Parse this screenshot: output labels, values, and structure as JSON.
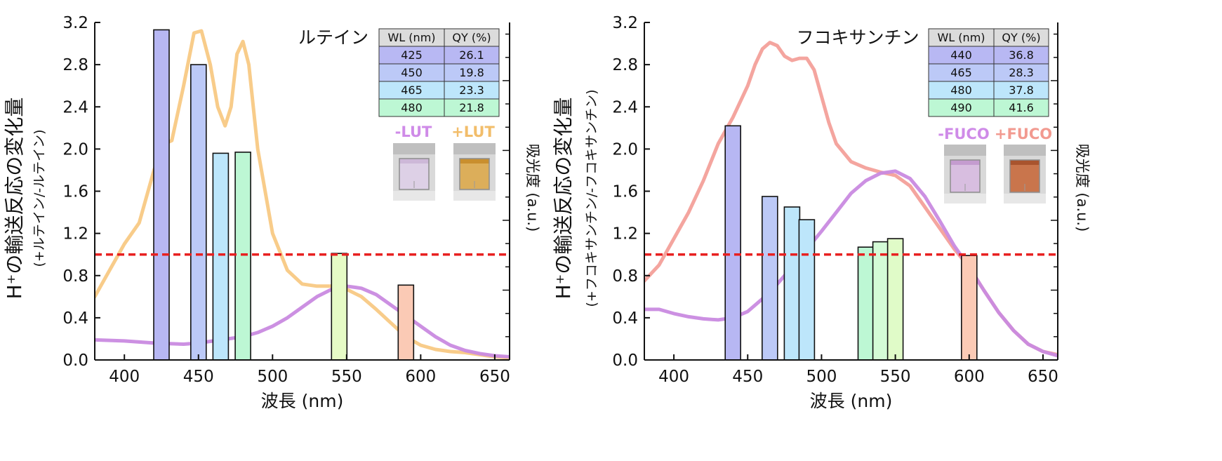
{
  "chart_data": [
    {
      "type": "bar",
      "title": "ルテイン",
      "xlabel": "波長 (nm)",
      "ylabel": "H⁺の輸送反応の変化量",
      "ylabel_sub": "(+ルテイン/-ルテイン)",
      "right_label": "吸光度 (a.u.)",
      "xlim": [
        380,
        660
      ],
      "ylim": [
        0,
        3.2
      ],
      "xticks": [
        400,
        450,
        500,
        550,
        600,
        650
      ],
      "yticks": [
        "0.0",
        "0.4",
        "0.8",
        "1.2",
        "1.6",
        "2.0",
        "2.4",
        "2.8",
        "3.2"
      ],
      "reference_line": 1.0,
      "bars": [
        {
          "x": 425,
          "value": 3.13,
          "color": "#b7b7f3"
        },
        {
          "x": 450,
          "value": 2.8,
          "color": "#bcc9f7"
        },
        {
          "x": 465,
          "value": 1.96,
          "color": "#bde6fb"
        },
        {
          "x": 480,
          "value": 1.97,
          "color": "#bdf7d4"
        },
        {
          "x": 545,
          "value": 1.01,
          "color": "#e6fbc6"
        },
        {
          "x": 590,
          "value": 0.71,
          "color": "#fbcab5"
        }
      ],
      "series": [
        {
          "name": "+LUT",
          "color": "#f8c984",
          "x": [
            380,
            390,
            400,
            410,
            420,
            427,
            432,
            440,
            447,
            452,
            458,
            463,
            468,
            472,
            476,
            480,
            484,
            490,
            500,
            510,
            520,
            530,
            540,
            550,
            560,
            570,
            580,
            590,
            600,
            610,
            620,
            630,
            640,
            650,
            660
          ],
          "y": [
            0.6,
            0.85,
            1.1,
            1.3,
            1.8,
            2.05,
            2.08,
            2.6,
            3.1,
            3.12,
            2.8,
            2.4,
            2.22,
            2.4,
            2.9,
            3.02,
            2.8,
            2.0,
            1.2,
            0.85,
            0.72,
            0.7,
            0.7,
            0.67,
            0.6,
            0.48,
            0.35,
            0.22,
            0.14,
            0.1,
            0.08,
            0.07,
            0.05,
            0.03,
            0.02
          ]
        },
        {
          "name": "-LUT",
          "color": "#c98ae0",
          "x": [
            380,
            400,
            420,
            440,
            450,
            460,
            470,
            480,
            490,
            500,
            510,
            520,
            530,
            540,
            550,
            560,
            570,
            580,
            590,
            600,
            610,
            620,
            630,
            640,
            650,
            660
          ],
          "y": [
            0.19,
            0.18,
            0.16,
            0.15,
            0.16,
            0.18,
            0.2,
            0.22,
            0.26,
            0.32,
            0.4,
            0.5,
            0.6,
            0.67,
            0.7,
            0.68,
            0.62,
            0.52,
            0.42,
            0.32,
            0.22,
            0.14,
            0.09,
            0.06,
            0.04,
            0.03
          ]
        }
      ],
      "table": {
        "headers": [
          "WL (nm)",
          "QY (%)"
        ],
        "rows": [
          [
            "425",
            "26.1"
          ],
          [
            "450",
            "19.8"
          ],
          [
            "465",
            "23.3"
          ],
          [
            "480",
            "21.8"
          ]
        ],
        "row_colors": [
          "#b8b8f3",
          "#bcc9f7",
          "#bde6fb",
          "#bdf7d4"
        ]
      },
      "photos": [
        {
          "label": "-LUT",
          "label_color": "#cf8be8",
          "liquid": "#ddd0e6",
          "liquid_dark": "#cdb8d8"
        },
        {
          "label": "+LUT",
          "label_color": "#f2bd6a",
          "liquid": "#dcae5a",
          "liquid_dark": "#c98f2e"
        }
      ]
    },
    {
      "type": "bar",
      "title": "フコキサンチン",
      "xlabel": "波長 (nm)",
      "ylabel": "H⁺の輸送反応の変化量",
      "ylabel_sub": "(+フコキサンチン/-フコキサンチン)",
      "right_label": "吸光度 (a.u.)",
      "xlim": [
        380,
        660
      ],
      "ylim": [
        0,
        3.2
      ],
      "xticks": [
        400,
        450,
        500,
        550,
        600,
        650
      ],
      "yticks": [
        "0.0",
        "0.4",
        "0.8",
        "1.2",
        "1.6",
        "2.0",
        "2.4",
        "2.8",
        "3.2"
      ],
      "reference_line": 1.0,
      "bars": [
        {
          "x": 440,
          "value": 2.22,
          "color": "#b7b7f3"
        },
        {
          "x": 465,
          "value": 1.55,
          "color": "#bcc9f7"
        },
        {
          "x": 480,
          "value": 1.45,
          "color": "#bde6fb"
        },
        {
          "x": 490,
          "value": 1.33,
          "color": "#bde6fb"
        },
        {
          "x": 530,
          "value": 1.07,
          "color": "#bdf7d4"
        },
        {
          "x": 540,
          "value": 1.12,
          "color": "#d4fbd6"
        },
        {
          "x": 550,
          "value": 1.15,
          "color": "#e0fbc8"
        },
        {
          "x": 600,
          "value": 0.99,
          "color": "#fbcab5"
        }
      ],
      "series": [
        {
          "name": "+FUCO",
          "color": "#f3a09a",
          "x": [
            380,
            390,
            400,
            410,
            420,
            430,
            440,
            450,
            455,
            460,
            465,
            470,
            475,
            480,
            485,
            490,
            495,
            500,
            505,
            510,
            520,
            530,
            540,
            550,
            560,
            570,
            580,
            590,
            600,
            610,
            620,
            630,
            640,
            650,
            660
          ],
          "y": [
            0.75,
            0.9,
            1.15,
            1.4,
            1.7,
            2.05,
            2.3,
            2.6,
            2.8,
            2.95,
            3.01,
            2.98,
            2.88,
            2.84,
            2.86,
            2.86,
            2.75,
            2.5,
            2.25,
            2.05,
            1.88,
            1.82,
            1.78,
            1.75,
            1.65,
            1.45,
            1.25,
            1.05,
            0.88,
            0.66,
            0.45,
            0.28,
            0.15,
            0.08,
            0.05
          ]
        },
        {
          "name": "-FUCO",
          "color": "#c98ae0",
          "x": [
            380,
            390,
            400,
            410,
            420,
            430,
            440,
            450,
            460,
            470,
            480,
            490,
            500,
            510,
            520,
            530,
            540,
            550,
            560,
            570,
            580,
            590,
            600,
            610,
            620,
            630,
            640,
            650,
            660
          ],
          "y": [
            0.48,
            0.48,
            0.44,
            0.41,
            0.39,
            0.38,
            0.4,
            0.46,
            0.58,
            0.72,
            0.88,
            1.05,
            1.22,
            1.4,
            1.58,
            1.7,
            1.77,
            1.79,
            1.72,
            1.55,
            1.32,
            1.08,
            0.88,
            0.66,
            0.45,
            0.28,
            0.15,
            0.08,
            0.04
          ]
        }
      ],
      "table": {
        "headers": [
          "WL (nm)",
          "QY (%)"
        ],
        "rows": [
          [
            "440",
            "36.8"
          ],
          [
            "465",
            "28.3"
          ],
          [
            "480",
            "37.8"
          ],
          [
            "490",
            "41.6"
          ]
        ],
        "row_colors": [
          "#b8b8f3",
          "#bcc9f7",
          "#bde6fb",
          "#bdf7d4"
        ]
      },
      "photos": [
        {
          "label": "-FUCO",
          "label_color": "#cf8be8",
          "liquid": "#d8bee0",
          "liquid_dark": "#c49ccf"
        },
        {
          "label": "+FUCO",
          "label_color": "#f29a90",
          "liquid": "#c9754c",
          "liquid_dark": "#a9542e"
        }
      ]
    }
  ]
}
